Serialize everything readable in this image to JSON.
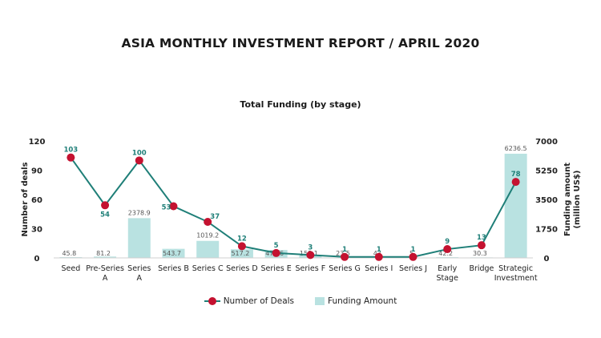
{
  "title": "ASIA MONTHLY INVESTMENT REPORT  /  APRIL 2020",
  "chart_data": {
    "type": "bar+line",
    "title": "Total Funding (by stage)",
    "categories": [
      "Seed",
      "Pre-Series\nA",
      "Series\nA",
      "Series B",
      "Series C",
      "Series D",
      "Series E",
      "Series F",
      "Series G",
      "Series I",
      "Series J",
      "Early\nStage",
      "Bridge",
      "Strategic\nInvestment"
    ],
    "series": [
      {
        "name": "Number of Deals",
        "type": "line",
        "axis": "left",
        "values": [
          103,
          54,
          100,
          53,
          37,
          12,
          5,
          3,
          1,
          1,
          1,
          9,
          13,
          78
        ],
        "labels": [
          "103",
          "54",
          "100",
          "53",
          "37",
          "12",
          "5",
          "3",
          "1",
          "1",
          "1",
          "9",
          "13",
          "78"
        ],
        "color": "#c41230",
        "line_color": "#1f7f78"
      },
      {
        "name": "Funding Amount",
        "type": "bar",
        "axis": "right",
        "values": [
          45.8,
          81.2,
          2378.9,
          543.7,
          1019.2,
          517.2,
          473.6,
          158.1,
          23.5,
          43,
          5,
          42.2,
          30.3,
          6236.5
        ],
        "labels": [
          "45.8",
          "81.2",
          "2378.9",
          "543.7",
          "1019.2",
          "517.2",
          "473.6",
          "158.1",
          "23.5",
          "43",
          "5",
          "42.2",
          "30.3",
          "6236.5"
        ],
        "color": "#b9e2e1"
      }
    ],
    "ylabel": "Number of deals",
    "ylim": [
      0,
      120
    ],
    "yticks": [
      "0",
      "30",
      "60",
      "90",
      "120"
    ],
    "y2label": "Funding amount\n(million US$)",
    "y2lim": [
      0,
      7000
    ],
    "y2ticks": [
      "0",
      "1750",
      "3500",
      "5250",
      "7000"
    ],
    "grid": false,
    "legend_position": "bottom-center",
    "label_color_line": "#1f7f78",
    "label_color_bar": "#555555",
    "axis_text_color": "#222222"
  }
}
